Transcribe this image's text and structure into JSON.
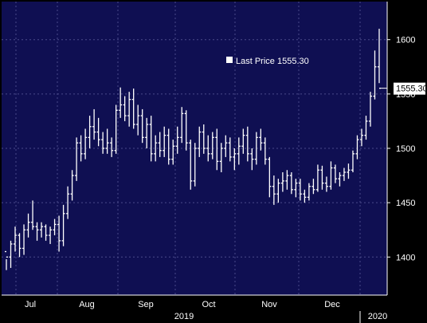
{
  "chart_data": {
    "type": "ohlc",
    "title": "",
    "xlabel": "",
    "ylabel": "",
    "ylim": [
      1365,
      1635
    ],
    "y_ticks": [
      1400,
      1450,
      1500,
      1550,
      1600
    ],
    "grid": true,
    "legend": {
      "placement": "top-right",
      "label": "Last Price",
      "value_text": "1555.30"
    },
    "last_price": 1555.3,
    "last_price_label": "1555.30",
    "colors": {
      "plot_bg": "#0f0f52",
      "grid": "#4a4a8a",
      "bars": "#ffffff",
      "page_bg": "#000000"
    },
    "month_labels": [
      "Jul",
      "Aug",
      "Sep",
      "Oct",
      "Nov",
      "Dec"
    ],
    "year_labels": [
      "2019",
      "2020"
    ],
    "series": [
      {
        "values": [
          [
            1405,
            1398,
            1388,
            1400
          ],
          [
            1400,
            1415,
            1390,
            1412
          ],
          [
            1412,
            1428,
            1405,
            1420
          ],
          [
            1420,
            1422,
            1400,
            1408
          ],
          [
            1408,
            1430,
            1402,
            1425
          ],
          [
            1425,
            1440,
            1418,
            1432
          ],
          [
            1432,
            1452,
            1425,
            1428
          ],
          [
            1428,
            1432,
            1415,
            1425
          ],
          [
            1425,
            1432,
            1418,
            1428
          ],
          [
            1428,
            1430,
            1415,
            1420
          ],
          [
            1420,
            1428,
            1412,
            1425
          ],
          [
            1425,
            1435,
            1420,
            1430
          ],
          [
            1430,
            1438,
            1405,
            1415
          ],
          [
            1415,
            1448,
            1410,
            1440
          ],
          [
            1440,
            1465,
            1435,
            1458
          ],
          [
            1458,
            1480,
            1452,
            1475
          ],
          [
            1475,
            1510,
            1470,
            1505
          ],
          [
            1505,
            1512,
            1488,
            1495
          ],
          [
            1495,
            1518,
            1490,
            1510
          ],
          [
            1510,
            1530,
            1500,
            1520
          ],
          [
            1520,
            1536,
            1508,
            1515
          ],
          [
            1515,
            1528,
            1502,
            1508
          ],
          [
            1508,
            1515,
            1495,
            1500
          ],
          [
            1500,
            1518,
            1495,
            1505
          ],
          [
            1505,
            1510,
            1492,
            1498
          ],
          [
            1498,
            1540,
            1495,
            1535
          ],
          [
            1535,
            1556,
            1528,
            1540
          ],
          [
            1540,
            1548,
            1525,
            1530
          ],
          [
            1530,
            1552,
            1520,
            1545
          ],
          [
            1545,
            1555,
            1518,
            1522
          ],
          [
            1522,
            1540,
            1512,
            1530
          ],
          [
            1530,
            1536,
            1505,
            1510
          ],
          [
            1510,
            1528,
            1500,
            1522
          ],
          [
            1522,
            1530,
            1488,
            1495
          ],
          [
            1495,
            1512,
            1488,
            1505
          ],
          [
            1505,
            1515,
            1492,
            1498
          ],
          [
            1498,
            1520,
            1492,
            1512
          ],
          [
            1512,
            1518,
            1485,
            1490
          ],
          [
            1490,
            1508,
            1485,
            1502
          ],
          [
            1502,
            1520,
            1495,
            1510
          ],
          [
            1510,
            1538,
            1505,
            1532
          ],
          [
            1532,
            1535,
            1498,
            1505
          ],
          [
            1505,
            1508,
            1462,
            1470
          ],
          [
            1470,
            1505,
            1465,
            1500
          ],
          [
            1500,
            1520,
            1492,
            1515
          ],
          [
            1515,
            1522,
            1495,
            1500
          ],
          [
            1500,
            1512,
            1488,
            1495
          ],
          [
            1495,
            1515,
            1490,
            1510
          ],
          [
            1510,
            1518,
            1480,
            1488
          ],
          [
            1488,
            1505,
            1478,
            1500
          ],
          [
            1500,
            1512,
            1492,
            1505
          ],
          [
            1505,
            1510,
            1488,
            1492
          ],
          [
            1492,
            1500,
            1480,
            1495
          ],
          [
            1495,
            1510,
            1485,
            1502
          ],
          [
            1502,
            1518,
            1495,
            1512
          ],
          [
            1512,
            1520,
            1488,
            1495
          ],
          [
            1495,
            1500,
            1480,
            1490
          ],
          [
            1490,
            1515,
            1485,
            1510
          ],
          [
            1510,
            1518,
            1498,
            1505
          ],
          [
            1505,
            1510,
            1485,
            1490
          ],
          [
            1490,
            1492,
            1455,
            1465
          ],
          [
            1465,
            1475,
            1448,
            1458
          ],
          [
            1458,
            1472,
            1450,
            1468
          ],
          [
            1468,
            1478,
            1460,
            1470
          ],
          [
            1470,
            1480,
            1462,
            1475
          ],
          [
            1475,
            1478,
            1458,
            1462
          ],
          [
            1462,
            1472,
            1455,
            1468
          ],
          [
            1468,
            1472,
            1452,
            1458
          ],
          [
            1458,
            1462,
            1450,
            1455
          ],
          [
            1455,
            1468,
            1452,
            1465
          ],
          [
            1465,
            1472,
            1458,
            1462
          ],
          [
            1462,
            1485,
            1460,
            1480
          ],
          [
            1480,
            1484,
            1462,
            1468
          ],
          [
            1468,
            1474,
            1460,
            1465
          ],
          [
            1465,
            1488,
            1462,
            1482
          ],
          [
            1482,
            1485,
            1468,
            1472
          ],
          [
            1472,
            1478,
            1465,
            1475
          ],
          [
            1475,
            1482,
            1470,
            1478
          ],
          [
            1478,
            1486,
            1472,
            1480
          ],
          [
            1480,
            1498,
            1478,
            1495
          ],
          [
            1495,
            1512,
            1490,
            1508
          ],
          [
            1508,
            1518,
            1502,
            1512
          ],
          [
            1512,
            1530,
            1508,
            1525
          ],
          [
            1525,
            1552,
            1520,
            1548
          ],
          [
            1548,
            1590,
            1545,
            1575
          ],
          [
            1575,
            1610,
            1560,
            1555.3
          ]
        ]
      }
    ]
  }
}
